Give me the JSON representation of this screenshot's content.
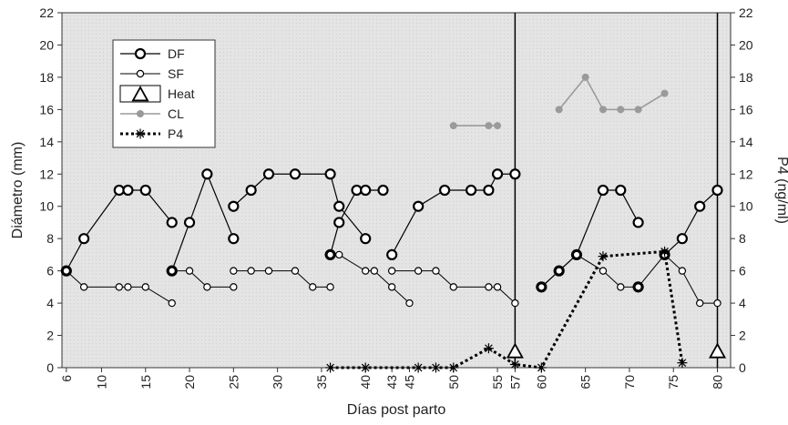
{
  "chart_data": {
    "type": "line",
    "xlabel": "Días post parto",
    "ylabel_left": "Diámetro (mm)",
    "ylabel_right": "P4 (ng/ml)",
    "xlim": [
      5.5,
      81.5
    ],
    "ylim_left": [
      0,
      22
    ],
    "ylim_right": [
      0,
      22
    ],
    "x_tick_labels": [
      "6",
      "10",
      "15",
      "20",
      "25",
      "30",
      "35",
      "40",
      "43",
      "45",
      "50",
      "55",
      "57",
      "60",
      "65",
      "70",
      "75",
      "80"
    ],
    "y_ticks": [
      "0",
      "2",
      "4",
      "6",
      "8",
      "10",
      "12",
      "14",
      "16",
      "18",
      "20",
      "22"
    ],
    "grid": false,
    "legend_position": "top-left",
    "heat_lines_x": [
      57,
      80
    ],
    "series": [
      {
        "name": "DF",
        "style": "open-circle-solid",
        "color": "#000000",
        "segments": [
          [
            [
              6,
              6
            ],
            [
              8,
              8
            ],
            [
              12,
              11
            ],
            [
              13,
              11
            ],
            [
              15,
              11
            ],
            [
              18,
              9
            ]
          ],
          [
            [
              18,
              6
            ],
            [
              20,
              9
            ],
            [
              22,
              12
            ],
            [
              25,
              8
            ]
          ],
          [
            [
              25,
              10
            ],
            [
              27,
              11
            ],
            [
              29,
              12
            ],
            [
              32,
              12
            ],
            [
              36,
              12
            ],
            [
              37,
              10
            ],
            [
              40,
              8
            ]
          ],
          [
            [
              36,
              7
            ],
            [
              37,
              9
            ],
            [
              39,
              11
            ],
            [
              40,
              11
            ],
            [
              42,
              11
            ]
          ],
          [
            [
              43,
              7
            ],
            [
              46,
              10
            ],
            [
              49,
              11
            ],
            [
              52,
              11
            ],
            [
              54,
              11
            ],
            [
              55,
              12
            ],
            [
              57,
              12
            ]
          ],
          [
            [
              60,
              5
            ],
            [
              62,
              6
            ],
            [
              64,
              7
            ],
            [
              67,
              11
            ],
            [
              69,
              11
            ],
            [
              71,
              9
            ]
          ],
          [
            [
              71,
              5
            ]
          ],
          [
            [
              74,
              7
            ],
            [
              76,
              8
            ],
            [
              78,
              10
            ],
            [
              80,
              11
            ]
          ]
        ]
      },
      {
        "name": "SF",
        "style": "small-open-circle-solid",
        "color": "#000000",
        "segments": [
          [
            [
              6,
              6
            ],
            [
              8,
              5
            ],
            [
              12,
              5
            ],
            [
              13,
              5
            ],
            [
              15,
              5
            ],
            [
              18,
              4
            ]
          ],
          [
            [
              18,
              6
            ],
            [
              20,
              6
            ],
            [
              22,
              5
            ],
            [
              25,
              5
            ]
          ],
          [
            [
              25,
              6
            ],
            [
              27,
              6
            ],
            [
              29,
              6
            ],
            [
              32,
              6
            ],
            [
              34,
              5
            ],
            [
              36,
              5
            ]
          ],
          [
            [
              36,
              7
            ],
            [
              37,
              7
            ],
            [
              40,
              6
            ],
            [
              41,
              6
            ],
            [
              43,
              5
            ],
            [
              45,
              4
            ]
          ],
          [
            [
              43,
              6
            ],
            [
              46,
              6
            ],
            [
              48,
              6
            ],
            [
              50,
              5
            ],
            [
              54,
              5
            ],
            [
              55,
              5
            ],
            [
              57,
              4
            ]
          ],
          [
            [
              60,
              5
            ],
            [
              62,
              6
            ],
            [
              64,
              7
            ],
            [
              67,
              6
            ],
            [
              69,
              5
            ],
            [
              71,
              5
            ],
            [
              74,
              7
            ],
            [
              76,
              6
            ],
            [
              78,
              4
            ],
            [
              80,
              4
            ]
          ]
        ]
      },
      {
        "name": "Heat",
        "style": "triangle",
        "color": "#000000",
        "points": [
          [
            57,
            1
          ],
          [
            80,
            1
          ]
        ]
      },
      {
        "name": "CL",
        "style": "grey-dot-solid",
        "color": "#9a9a9a",
        "segments": [
          [
            [
              50,
              15
            ],
            [
              54,
              15
            ],
            [
              55,
              15
            ]
          ],
          [
            [
              62,
              16
            ],
            [
              65,
              18
            ],
            [
              67,
              16
            ],
            [
              69,
              16
            ],
            [
              71,
              16
            ],
            [
              74,
              17
            ]
          ]
        ]
      },
      {
        "name": "P4",
        "style": "star-dotted",
        "color": "#000000",
        "segments": [
          [
            [
              36,
              0
            ],
            [
              40,
              0
            ],
            [
              46,
              0
            ],
            [
              48,
              0
            ],
            [
              50,
              0
            ],
            [
              54,
              1.2
            ],
            [
              57,
              0.2
            ],
            [
              60,
              0
            ],
            [
              67,
              6.9
            ],
            [
              74,
              7.2
            ],
            [
              76,
              0.3
            ]
          ]
        ]
      }
    ]
  }
}
